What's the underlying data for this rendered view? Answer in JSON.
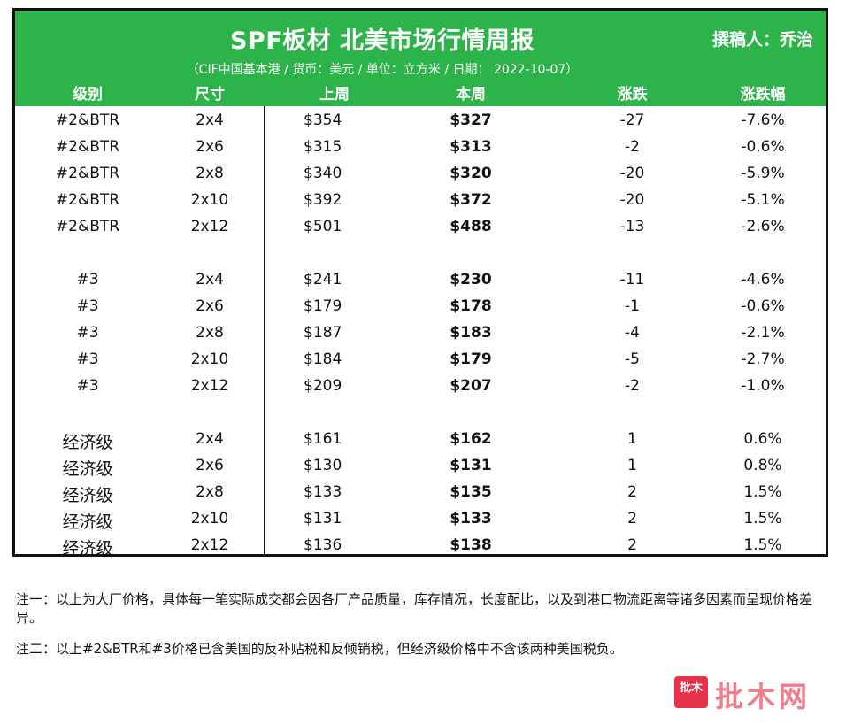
{
  "header": {
    "title": "SPF板材 北美市场行情周报",
    "author": "撰稿人：乔治",
    "subtitle": "（CIF中国基本港 / 货币：美元 / 单位：立方米 / 日期： 2022-10-07）"
  },
  "columns": {
    "grade": "级别",
    "size": "尺寸",
    "last_week": "上周",
    "this_week": "本周",
    "change": "涨跌",
    "change_pct": "涨跌幅"
  },
  "rows": [
    {
      "grade": "#2&BTR",
      "size": "2x4",
      "last": "$354",
      "this": "$327",
      "chg": "-27",
      "pct": "-7.6%"
    },
    {
      "grade": "#2&BTR",
      "size": "2x6",
      "last": "$315",
      "this": "$313",
      "chg": "-2",
      "pct": "-0.6%"
    },
    {
      "grade": "#2&BTR",
      "size": "2x8",
      "last": "$340",
      "this": "$320",
      "chg": "-20",
      "pct": "-5.9%"
    },
    {
      "grade": "#2&BTR",
      "size": "2x10",
      "last": "$392",
      "this": "$372",
      "chg": "-20",
      "pct": "-5.1%"
    },
    {
      "grade": "#2&BTR",
      "size": "2x12",
      "last": "$501",
      "this": "$488",
      "chg": "-13",
      "pct": "-2.6%"
    },
    {
      "grade": "#3",
      "size": "2x4",
      "last": "$241",
      "this": "$230",
      "chg": "-11",
      "pct": "-4.6%"
    },
    {
      "grade": "#3",
      "size": "2x6",
      "last": "$179",
      "this": "$178",
      "chg": "-1",
      "pct": "-0.6%"
    },
    {
      "grade": "#3",
      "size": "2x8",
      "last": "$187",
      "this": "$183",
      "chg": "-4",
      "pct": "-2.1%"
    },
    {
      "grade": "#3",
      "size": "2x10",
      "last": "$184",
      "this": "$179",
      "chg": "-5",
      "pct": "-2.7%"
    },
    {
      "grade": "#3",
      "size": "2x12",
      "last": "$209",
      "this": "$207",
      "chg": "-2",
      "pct": "-1.0%"
    },
    {
      "grade": "经济级",
      "size": "2x4",
      "last": "$161",
      "this": "$162",
      "chg": "1",
      "pct": "0.6%"
    },
    {
      "grade": "经济级",
      "size": "2x6",
      "last": "$130",
      "this": "$131",
      "chg": "1",
      "pct": "0.8%"
    },
    {
      "grade": "经济级",
      "size": "2x8",
      "last": "$133",
      "this": "$135",
      "chg": "2",
      "pct": "1.5%"
    },
    {
      "grade": "经济级",
      "size": "2x10",
      "last": "$131",
      "this": "$133",
      "chg": "2",
      "pct": "1.5%"
    },
    {
      "grade": "经济级",
      "size": "2x12",
      "last": "$136",
      "this": "$138",
      "chg": "2",
      "pct": "1.5%"
    }
  ],
  "notes": {
    "note1": "注一：以上为大厂价格，具体每一笔实际成交都会因各厂产品质量，库存情况，长度配比，以及到港口物流距离等诸多因素而呈现价格差异。",
    "note2": "注二：以上#2&BTR和#3价格已含美国的反补贴税和反倾销税，但经济级价格中不含该两种美国税负。"
  },
  "logo": {
    "badge_text": "批木",
    "name": "批木网",
    "color": "#e8314a"
  }
}
